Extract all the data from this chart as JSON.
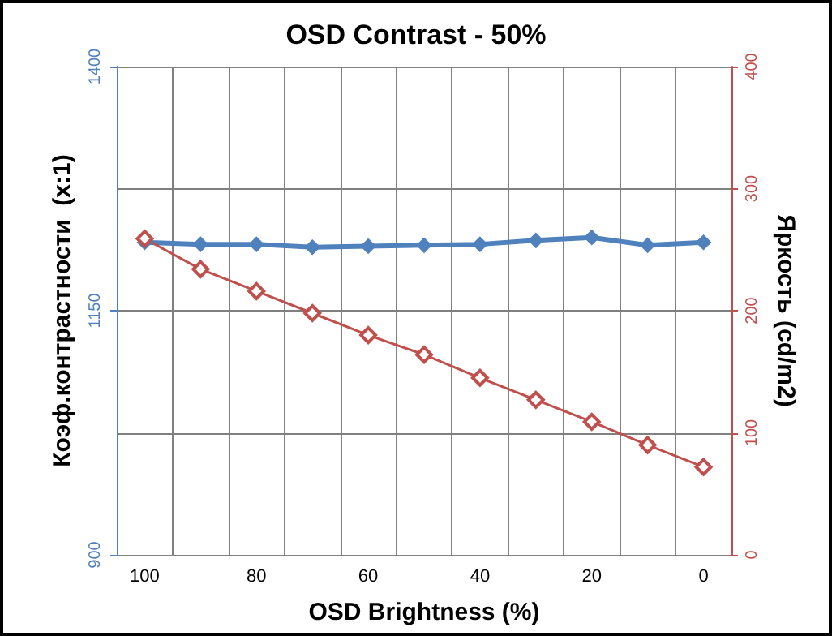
{
  "chart_data": {
    "type": "line",
    "title": "OSD Contrast - 50%",
    "xlabel": "OSD Brightness (%)",
    "ylabel": "Коэф.контрастности  (x:1)",
    "y2label": "Яркость (cd/m2)",
    "categories": [
      "100",
      null,
      "80",
      null,
      "60",
      null,
      "40",
      null,
      "20",
      null,
      "0"
    ],
    "series": [
      {
        "color": "#4f81bd",
        "values": [
          1220,
          1218,
          1218,
          1215,
          1216,
          1217,
          1218,
          1222,
          1225,
          1217,
          1220
        ]
      },
      {
        "color": "#c0504d",
        "axis": "y2",
        "values": [
          259,
          234,
          216,
          198,
          180,
          164,
          145,
          127,
          109,
          90,
          72
        ]
      }
    ],
    "ylim": [
      900,
      1400
    ],
    "yticks": [
      900,
      1150,
      1400
    ],
    "y2lim": [
      0,
      400
    ],
    "y2ticks": [
      0,
      100,
      200,
      300,
      400
    ],
    "grid": true,
    "marker": "diamond"
  }
}
